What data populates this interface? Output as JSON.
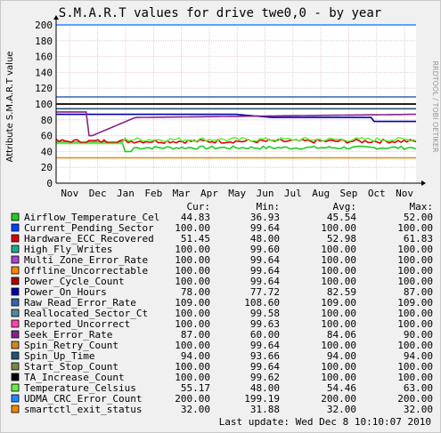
{
  "chart_data": {
    "type": "line",
    "title": "S.M.A.R.T values for drive twe0,0 - by year",
    "ylabel": "Attribute S.M.A.R.T value",
    "watermark": "RRDTOOL / TOBI OETIKER",
    "ylim": [
      0,
      200
    ],
    "y_ticks": [
      "0",
      "20",
      "40",
      "60",
      "80",
      "100",
      "120",
      "140",
      "160",
      "180",
      "200"
    ],
    "x_ticks": [
      "Nov",
      "Dec",
      "Jan",
      "Feb",
      "Mar",
      "Apr",
      "May",
      "Jun",
      "Jul",
      "Aug",
      "Sep",
      "Oct",
      "Nov"
    ],
    "grid": true,
    "legend_placement": "bottom",
    "table_headers": [
      "Cur:",
      "Min:",
      "Avg:",
      "Max:"
    ],
    "series": [
      {
        "name": "Airflow_Temperature_Cel",
        "color": "#22cc22",
        "cur": "44.83",
        "min": "36.93",
        "avg": "45.54",
        "max": "52.00"
      },
      {
        "name": "Current_Pending_Sector",
        "color": "#0044ff",
        "cur": "100.00",
        "min": "99.64",
        "avg": "100.00",
        "max": "100.00"
      },
      {
        "name": "Hardware_ECC_Recovered",
        "color": "#dd0000",
        "cur": "51.45",
        "min": "48.00",
        "avg": "52.98",
        "max": "61.83"
      },
      {
        "name": "High_Fly_Writes",
        "color": "#22aa88",
        "cur": "100.00",
        "min": "99.60",
        "avg": "100.00",
        "max": "100.00"
      },
      {
        "name": "Multi_Zone_Error_Rate",
        "color": "#aa44cc",
        "cur": "100.00",
        "min": "99.64",
        "avg": "100.00",
        "max": "100.00"
      },
      {
        "name": "Offline_Uncorrectable",
        "color": "#ff8800",
        "cur": "100.00",
        "min": "99.64",
        "avg": "100.00",
        "max": "100.00"
      },
      {
        "name": "Power_Cycle_Count",
        "color": "#aa0000",
        "cur": "100.00",
        "min": "99.64",
        "avg": "100.00",
        "max": "100.00"
      },
      {
        "name": "Power_On_Hours",
        "color": "#0000aa",
        "cur": "78.00",
        "min": "77.72",
        "avg": "82.59",
        "max": "87.00"
      },
      {
        "name": "Raw_Read_Error_Rate",
        "color": "#3366aa",
        "cur": "109.00",
        "min": "108.60",
        "avg": "109.00",
        "max": "109.00"
      },
      {
        "name": "Reallocated_Sector_Ct",
        "color": "#558899",
        "cur": "100.00",
        "min": "99.58",
        "avg": "100.00",
        "max": "100.00"
      },
      {
        "name": "Reported_Uncorrect",
        "color": "#ff44aa",
        "cur": "100.00",
        "min": "99.63",
        "avg": "100.00",
        "max": "100.00"
      },
      {
        "name": "Seek_Error_Rate",
        "color": "#882288",
        "cur": "87.00",
        "min": "60.00",
        "avg": "84.06",
        "max": "90.00"
      },
      {
        "name": "Spin_Retry_Count",
        "color": "#cc8822",
        "cur": "100.00",
        "min": "99.64",
        "avg": "100.00",
        "max": "100.00"
      },
      {
        "name": "Spin_Up_Time",
        "color": "#225577",
        "cur": "94.00",
        "min": "93.66",
        "avg": "94.00",
        "max": "94.00"
      },
      {
        "name": "Start_Stop_Count",
        "color": "#778844",
        "cur": "100.00",
        "min": "99.64",
        "avg": "100.00",
        "max": "100.00"
      },
      {
        "name": "TA_Increase_Count",
        "color": "#000000",
        "cur": "100.00",
        "min": "99.62",
        "avg": "100.00",
        "max": "100.00"
      },
      {
        "name": "Temperature_Celsius",
        "color": "#66ee44",
        "cur": "55.17",
        "min": "48.00",
        "avg": "54.46",
        "max": "63.00"
      },
      {
        "name": "UDMA_CRC_Error_Count",
        "color": "#2288ff",
        "cur": "200.00",
        "min": "199.19",
        "avg": "200.00",
        "max": "200.00"
      },
      {
        "name": "smartctl_exit_status",
        "color": "#ee8800",
        "cur": "32.00",
        "min": "31.88",
        "avg": "32.00",
        "max": "32.00"
      }
    ],
    "footer": "Last update: Wed Dec  8 10:10:07 2010"
  }
}
